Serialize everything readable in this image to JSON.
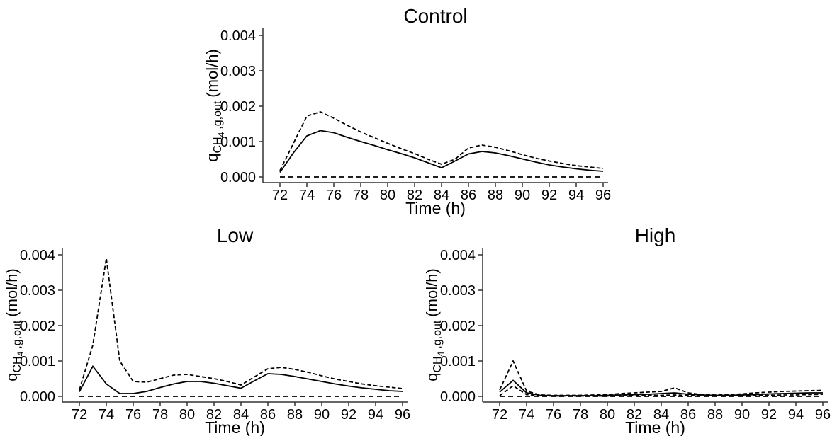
{
  "figure": {
    "background": "#ffffff",
    "text_color": "#000000",
    "line_color": "#000000",
    "axis_color": "#333333"
  },
  "chart_data": [
    {
      "type": "line",
      "title": "Control",
      "xlabel": "Time (h)",
      "ylabel": "qCH4,g,out (mol/h)",
      "ylabel_parts": {
        "base": "q",
        "species": "CH",
        "species_sub": "4",
        "stream": ",g,out",
        "unit": "(mol/h)"
      },
      "xlim": [
        72,
        96
      ],
      "ylim": [
        0,
        0.004
      ],
      "grid": false,
      "legend": false,
      "x_ticks": [
        72,
        74,
        76,
        78,
        80,
        82,
        84,
        86,
        88,
        90,
        92,
        94,
        96
      ],
      "y_ticks": [
        "0.000",
        "0.001",
        "0.002",
        "0.003",
        "0.004"
      ],
      "x": [
        72,
        73,
        74,
        75,
        76,
        77,
        78,
        79,
        80,
        81,
        82,
        83,
        84,
        85,
        86,
        87,
        88,
        89,
        90,
        91,
        92,
        93,
        94,
        95,
        96
      ],
      "series": [
        {
          "name": "zero-baseline-dashed-line",
          "style": "longdash",
          "values": [
            0,
            0,
            0,
            0,
            0,
            0,
            0,
            0,
            0,
            0,
            0,
            0,
            0,
            0,
            0,
            0,
            0,
            0,
            0,
            0,
            0,
            0,
            0,
            0,
            0
          ]
        },
        {
          "name": "dashed-line",
          "style": "dash",
          "values": [
            0.00018,
            0.00095,
            0.00172,
            0.00184,
            0.00166,
            0.00146,
            0.00127,
            0.00111,
            0.00095,
            0.0008,
            0.00066,
            0.0005,
            0.00036,
            0.0005,
            0.00082,
            0.0009,
            0.00084,
            0.00074,
            0.00063,
            0.00053,
            0.00045,
            0.00038,
            0.00032,
            0.00028,
            0.00024
          ]
        },
        {
          "name": "solid-line",
          "style": "solid",
          "values": [
            0.00013,
            0.00068,
            0.00116,
            0.00131,
            0.00125,
            0.00112,
            0.001,
            0.00089,
            0.00077,
            0.00066,
            0.00054,
            0.0004,
            0.00026,
            0.00045,
            0.00065,
            0.00072,
            0.00068,
            0.0006,
            0.00051,
            0.00042,
            0.00034,
            0.00028,
            0.00023,
            0.00019,
            0.00016
          ]
        }
      ]
    },
    {
      "type": "line",
      "title": "Low",
      "xlabel": "Time (h)",
      "ylabel": "qCH4,g,out (mol/h)",
      "ylabel_parts": {
        "base": "q",
        "species": "CH",
        "species_sub": "4",
        "stream": ",g,out",
        "unit": "(mol/h)"
      },
      "xlim": [
        72,
        96
      ],
      "ylim": [
        0,
        0.004
      ],
      "grid": false,
      "legend": false,
      "x_ticks": [
        72,
        74,
        76,
        78,
        80,
        82,
        84,
        86,
        88,
        90,
        92,
        94,
        96
      ],
      "y_ticks": [
        "0.000",
        "0.001",
        "0.002",
        "0.003",
        "0.004"
      ],
      "x": [
        72,
        73,
        74,
        75,
        76,
        77,
        78,
        79,
        80,
        81,
        82,
        83,
        84,
        85,
        86,
        87,
        88,
        89,
        90,
        91,
        92,
        93,
        94,
        95,
        96
      ],
      "series": [
        {
          "name": "zero-baseline-dashed-line",
          "style": "longdash",
          "values": [
            0,
            0,
            0,
            0,
            0,
            0,
            0,
            0,
            0,
            0,
            0,
            0,
            0,
            0,
            0,
            0,
            0,
            0,
            0,
            0,
            0,
            0,
            0,
            0,
            0
          ]
        },
        {
          "name": "dashed-line",
          "style": "dash",
          "values": [
            0.00018,
            0.00145,
            0.0039,
            0.001,
            0.00042,
            0.0004,
            0.0005,
            0.0006,
            0.00062,
            0.00056,
            0.0005,
            0.00042,
            0.00032,
            0.00055,
            0.00078,
            0.00082,
            0.00076,
            0.00068,
            0.00058,
            0.00049,
            0.00042,
            0.00035,
            0.0003,
            0.00026,
            0.00022
          ]
        },
        {
          "name": "solid-line",
          "style": "solid",
          "values": [
            0.00013,
            0.00085,
            0.00035,
            8e-05,
            8e-05,
            0.00014,
            0.00025,
            0.00035,
            0.00042,
            0.00042,
            0.00037,
            0.0003,
            0.00023,
            0.00044,
            0.00064,
            0.00062,
            0.00056,
            0.00049,
            0.00042,
            0.00035,
            0.00029,
            0.00024,
            0.0002,
            0.00016,
            0.00014
          ]
        }
      ]
    },
    {
      "type": "line",
      "title": "High",
      "xlabel": "Time (h)",
      "ylabel": "qCH4,g,out (mol/h)",
      "ylabel_parts": {
        "base": "q",
        "species": "CH",
        "species_sub": "4",
        "stream": ",g,out",
        "unit": "(mol/h)"
      },
      "xlim": [
        72,
        96
      ],
      "ylim": [
        0,
        0.004
      ],
      "grid": false,
      "legend": false,
      "x_ticks": [
        72,
        74,
        76,
        78,
        80,
        82,
        84,
        86,
        88,
        90,
        92,
        94,
        96
      ],
      "y_ticks": [
        "0.000",
        "0.001",
        "0.002",
        "0.003",
        "0.004"
      ],
      "x": [
        72,
        73,
        74,
        75,
        76,
        77,
        78,
        79,
        80,
        81,
        82,
        83,
        84,
        85,
        86,
        87,
        88,
        89,
        90,
        91,
        92,
        93,
        94,
        95,
        96
      ],
      "series": [
        {
          "name": "zero-baseline-dashed-line",
          "style": "longdash",
          "values": [
            0,
            0,
            0,
            0,
            0,
            0,
            0,
            0,
            0,
            0,
            0,
            0,
            0,
            0,
            0,
            0,
            0,
            0,
            0,
            0,
            0,
            0,
            0,
            0,
            0
          ]
        },
        {
          "name": "secondary-dashed-line",
          "style": "dash",
          "values": [
            2e-05,
            0.0003,
            5e-05,
            2e-05,
            1e-05,
            1e-05,
            1e-05,
            1e-05,
            1e-05,
            2e-05,
            2e-05,
            3e-05,
            3e-05,
            4e-05,
            3e-05,
            2e-05,
            2e-05,
            2e-05,
            2e-05,
            3e-05,
            3e-05,
            4e-05,
            4e-05,
            5e-05,
            6e-05
          ]
        },
        {
          "name": "dashed-line",
          "style": "dash",
          "values": [
            0.00018,
            0.001,
            0.00015,
            4e-05,
            3e-05,
            3e-05,
            3e-05,
            4e-05,
            5e-05,
            8e-05,
            0.0001,
            0.00012,
            0.00014,
            0.00024,
            0.0001,
            5e-05,
            4e-05,
            5e-05,
            7e-05,
            0.0001,
            0.00012,
            0.00014,
            0.00015,
            0.00016,
            0.00017
          ]
        },
        {
          "name": "solid-line",
          "style": "solid",
          "values": [
            0.00012,
            0.00045,
            0.0001,
            3e-05,
            2e-05,
            2e-05,
            2e-05,
            2e-05,
            3e-05,
            4e-05,
            5e-05,
            6e-05,
            8e-05,
            0.0001,
            6e-05,
            4e-05,
            3e-05,
            3e-05,
            4e-05,
            5e-05,
            7e-05,
            8e-05,
            9e-05,
            0.0001,
            0.0001
          ]
        }
      ]
    }
  ]
}
